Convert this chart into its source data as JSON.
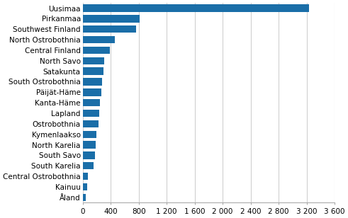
{
  "regions": [
    "Uusimaa",
    "Pirkanmaa",
    "Southwest Finland",
    "North Ostrobothnia",
    "Central Finland",
    "North Savo",
    "Satakunta",
    "South Ostrobothnia",
    "Päijät-Häme",
    "Kanta-Häme",
    "Lapland",
    "Ostrobothnia",
    "Kymenlaakso",
    "North Karelia",
    "South Savo",
    "South Karelia",
    "Central Ostrobothnia",
    "Kainuu",
    "Åland"
  ],
  "values": [
    3230,
    810,
    760,
    455,
    385,
    310,
    295,
    280,
    270,
    245,
    235,
    225,
    195,
    185,
    175,
    155,
    75,
    70,
    40
  ],
  "bar_color": "#1a6ea8",
  "xlim": [
    0,
    3600
  ],
  "xticks": [
    0,
    400,
    800,
    1200,
    1600,
    2000,
    2400,
    2800,
    3200,
    3600
  ],
  "xticklabels": [
    "0",
    "400",
    "800",
    "1 200",
    "1 600",
    "2 000",
    "2 400",
    "2 800",
    "3 200",
    "3 600"
  ],
  "background_color": "#ffffff",
  "grid_color": "#d0d0d0",
  "tick_fontsize": 7.5,
  "label_fontsize": 7.5
}
